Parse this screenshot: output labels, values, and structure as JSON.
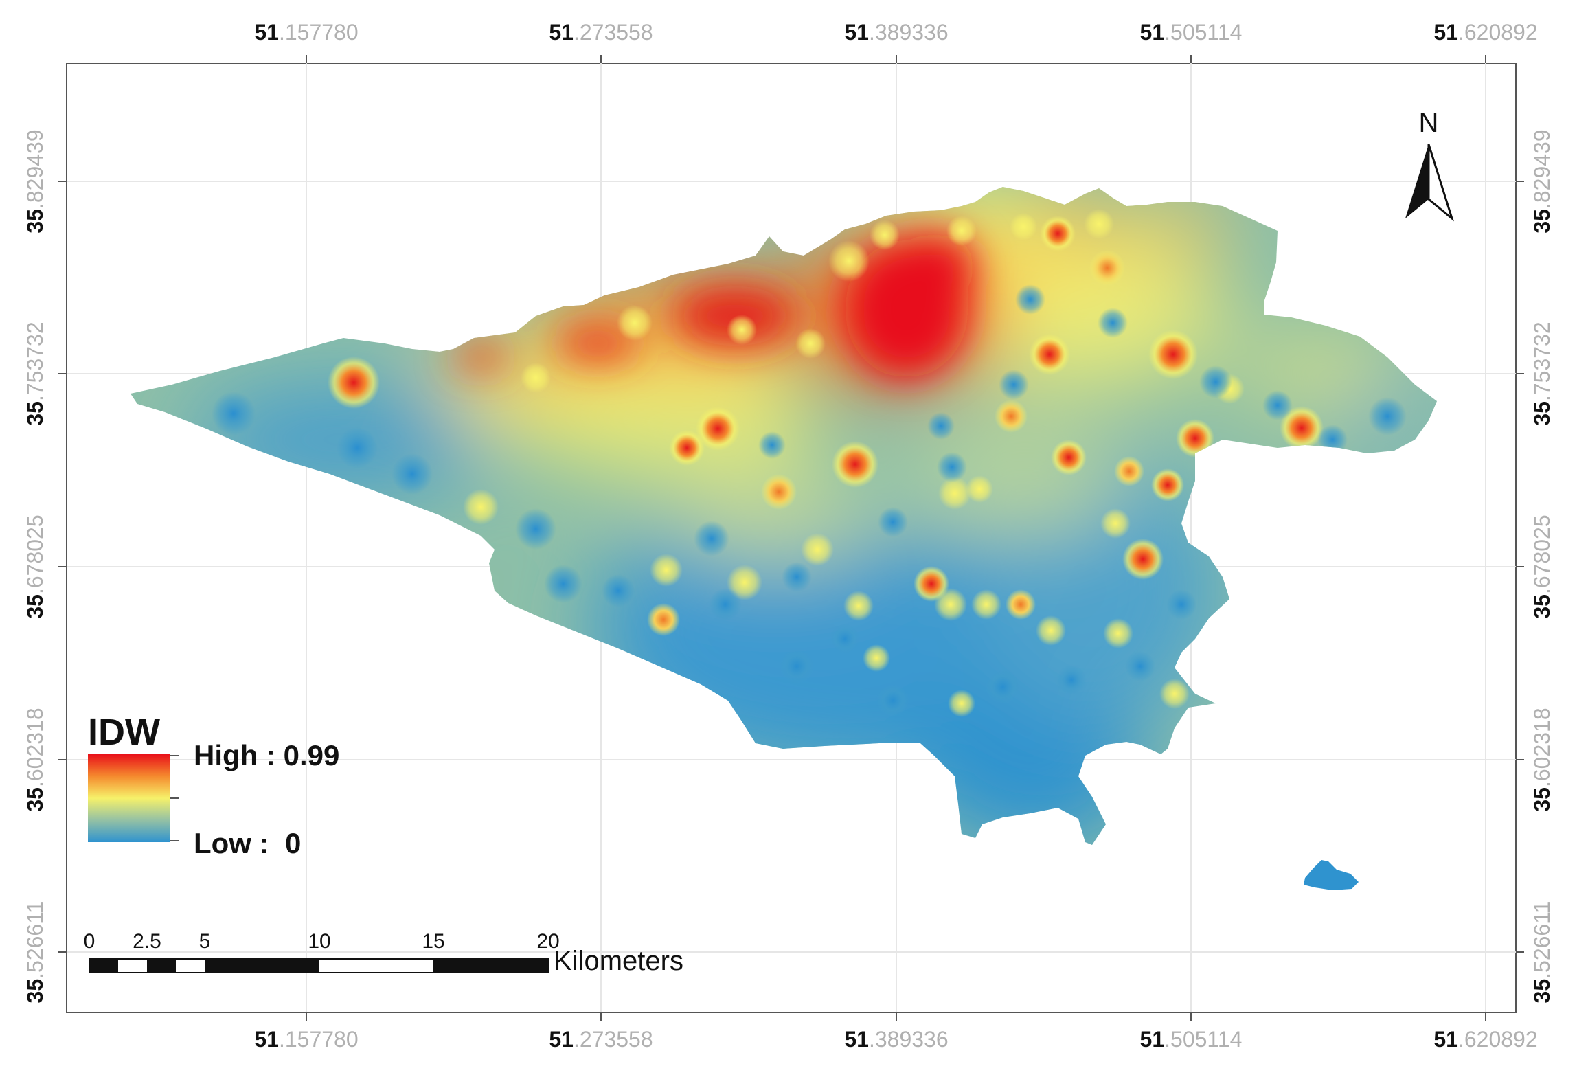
{
  "map": {
    "x_ticks": [
      {
        "deg": "51",
        "frac": ".157780"
      },
      {
        "deg": "51",
        "frac": ".273558"
      },
      {
        "deg": "51",
        "frac": ".389336"
      },
      {
        "deg": "51",
        "frac": ".505114"
      },
      {
        "deg": "51",
        "frac": ".620892"
      }
    ],
    "y_ticks": [
      {
        "deg": "35",
        "frac": ".829439"
      },
      {
        "deg": "35",
        "frac": ".753732"
      },
      {
        "deg": "35",
        "frac": ".678025"
      },
      {
        "deg": "35",
        "frac": ".602318"
      },
      {
        "deg": "35",
        "frac": ".526611"
      }
    ],
    "north_label": "N",
    "colors": {
      "high": "#e8101a",
      "mid_high": "#f58a2e",
      "mid": "#f6f16a",
      "mid_low": "#94c1a4",
      "low": "#2f93cf",
      "frame": "#555555",
      "grid": "#e6e6e6",
      "label_gray": "#b0b0b0"
    }
  },
  "legend": {
    "title": "IDW",
    "high_label": "High : 0.99",
    "low_label": "Low :  0"
  },
  "scale_bar": {
    "ticks": [
      "0",
      "2.5",
      "5",
      "10",
      "15",
      "20"
    ],
    "unit": "Kilometers"
  }
}
